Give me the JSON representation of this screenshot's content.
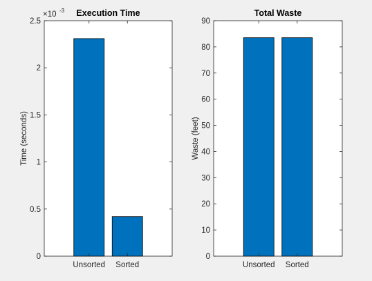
{
  "figure": {
    "background": "#f0f0f0",
    "axes_background": "#ffffff",
    "bar_color": "#0072bd",
    "axis_color": "#262626"
  },
  "chart_data": [
    {
      "type": "bar",
      "title": "Execution Time",
      "ylabel": "Time (seconds)",
      "xlabel": "",
      "categories": [
        "Unsorted",
        "Sorted"
      ],
      "values": [
        0.00231,
        0.00042
      ],
      "ylim": [
        0,
        0.0025
      ],
      "yticks": [
        0,
        0.0005,
        0.001,
        0.0015,
        0.002,
        0.0025
      ],
      "ytick_labels": [
        "0",
        "0.5",
        "1",
        "1.5",
        "2",
        "2.5"
      ],
      "exponent_base": "×10",
      "exponent_power": "-3",
      "grid": false,
      "box": true
    },
    {
      "type": "bar",
      "title": "Total Waste",
      "ylabel": "Waste (feet)",
      "xlabel": "",
      "categories": [
        "Unsorted",
        "Sorted"
      ],
      "values": [
        83.5,
        83.5
      ],
      "ylim": [
        0,
        90
      ],
      "yticks": [
        0,
        10,
        20,
        30,
        40,
        50,
        60,
        70,
        80,
        90
      ],
      "ytick_labels": [
        "0",
        "10",
        "20",
        "30",
        "40",
        "50",
        "60",
        "70",
        "80",
        "90"
      ],
      "grid": false,
      "box": true
    }
  ]
}
